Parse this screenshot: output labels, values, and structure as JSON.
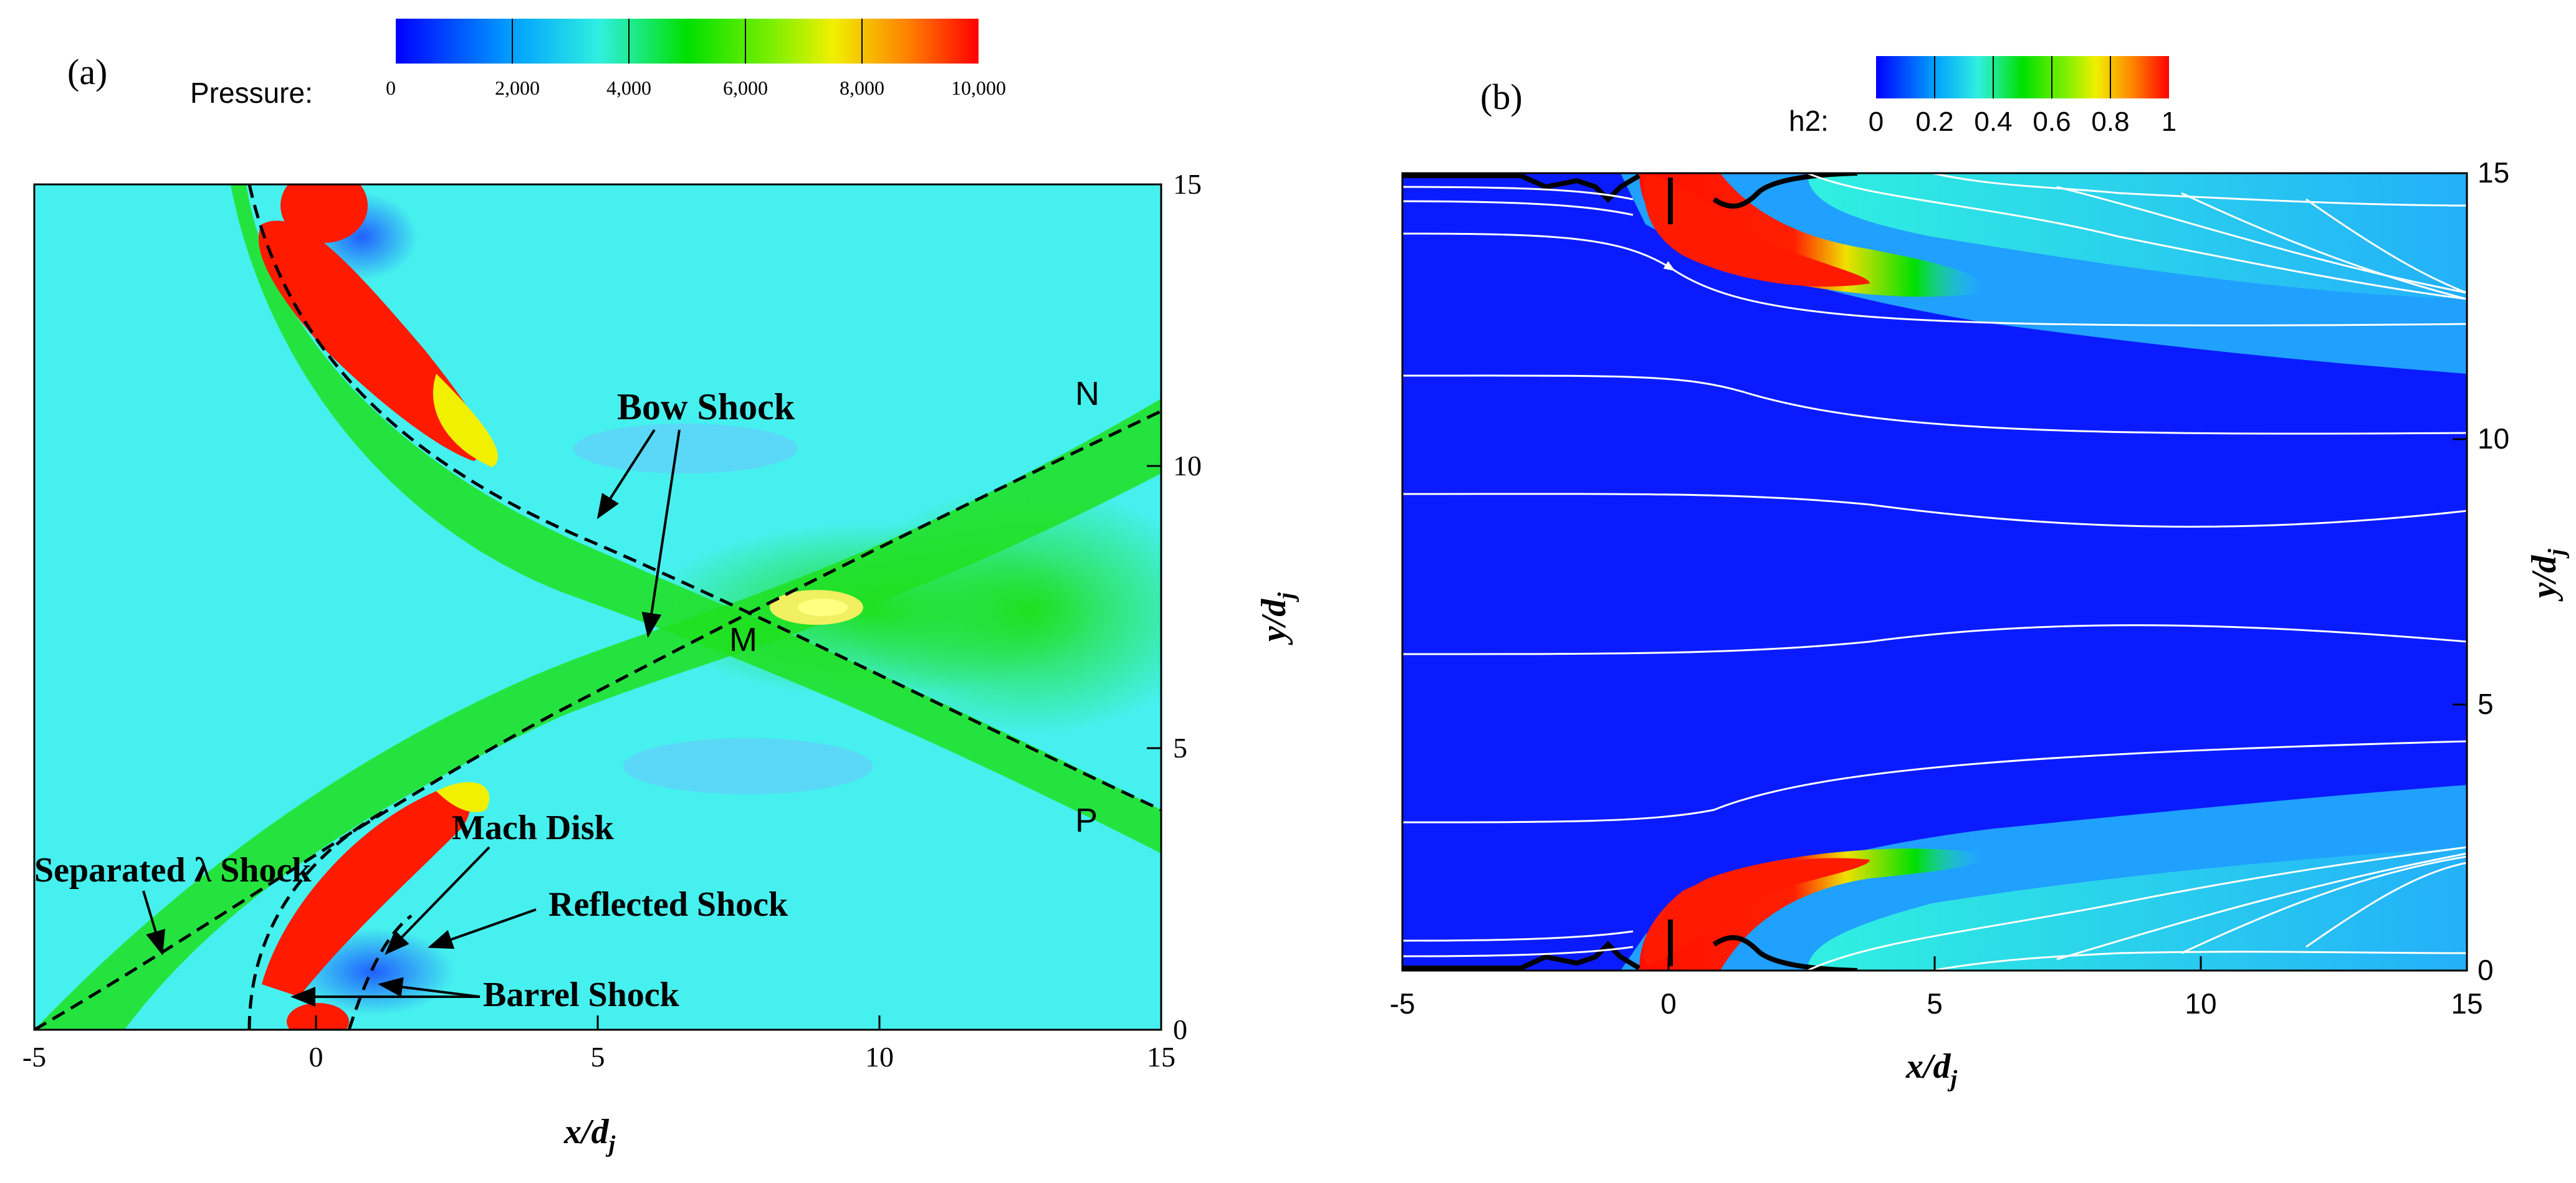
{
  "figure": {
    "panel_a": {
      "label": "(a)",
      "colorbar": {
        "title": "Pressure:",
        "ticks": [
          "0",
          "2,000",
          "4,000",
          "6,000",
          "8,000",
          "10,000"
        ]
      },
      "axes": {
        "xlabel_main": "x/d",
        "xlabel_sub": "j",
        "ylabel_main": "y/d",
        "ylabel_sub": "j",
        "xticks": [
          "-5",
          "0",
          "5",
          "10",
          "15"
        ],
        "yticks": [
          "0",
          "5",
          "10",
          "15"
        ]
      },
      "annotations": {
        "bow_shock": "Bow Shock",
        "mach_disk": "Mach Disk",
        "reflected_shock": "Reflected Shock",
        "barrel_shock": "Barrel Shock",
        "separated_shock": "Separated λ Shock",
        "point_m": "M",
        "point_n": "N",
        "point_p": "P"
      }
    },
    "panel_b": {
      "label": "(b)",
      "colorbar": {
        "title": "h2:",
        "ticks": [
          "0",
          "0.2",
          "0.4",
          "0.6",
          "0.8",
          "1"
        ]
      },
      "axes": {
        "xlabel_main": "x/d",
        "xlabel_sub": "j",
        "ylabel_main": "y/d",
        "ylabel_sub": "j",
        "xticks": [
          "-5",
          "0",
          "5",
          "10",
          "15"
        ],
        "yticks": [
          "0",
          "5",
          "10",
          "15"
        ]
      }
    }
  },
  "colors": {
    "jet_blue": "#1a2fff",
    "jet_cyan": "#40f0f0",
    "jet_green": "#10e000",
    "jet_yellow": "#f0f000",
    "jet_red": "#ff1a00",
    "field_a": "#46f0ee",
    "field_b": "#0a1cff"
  }
}
